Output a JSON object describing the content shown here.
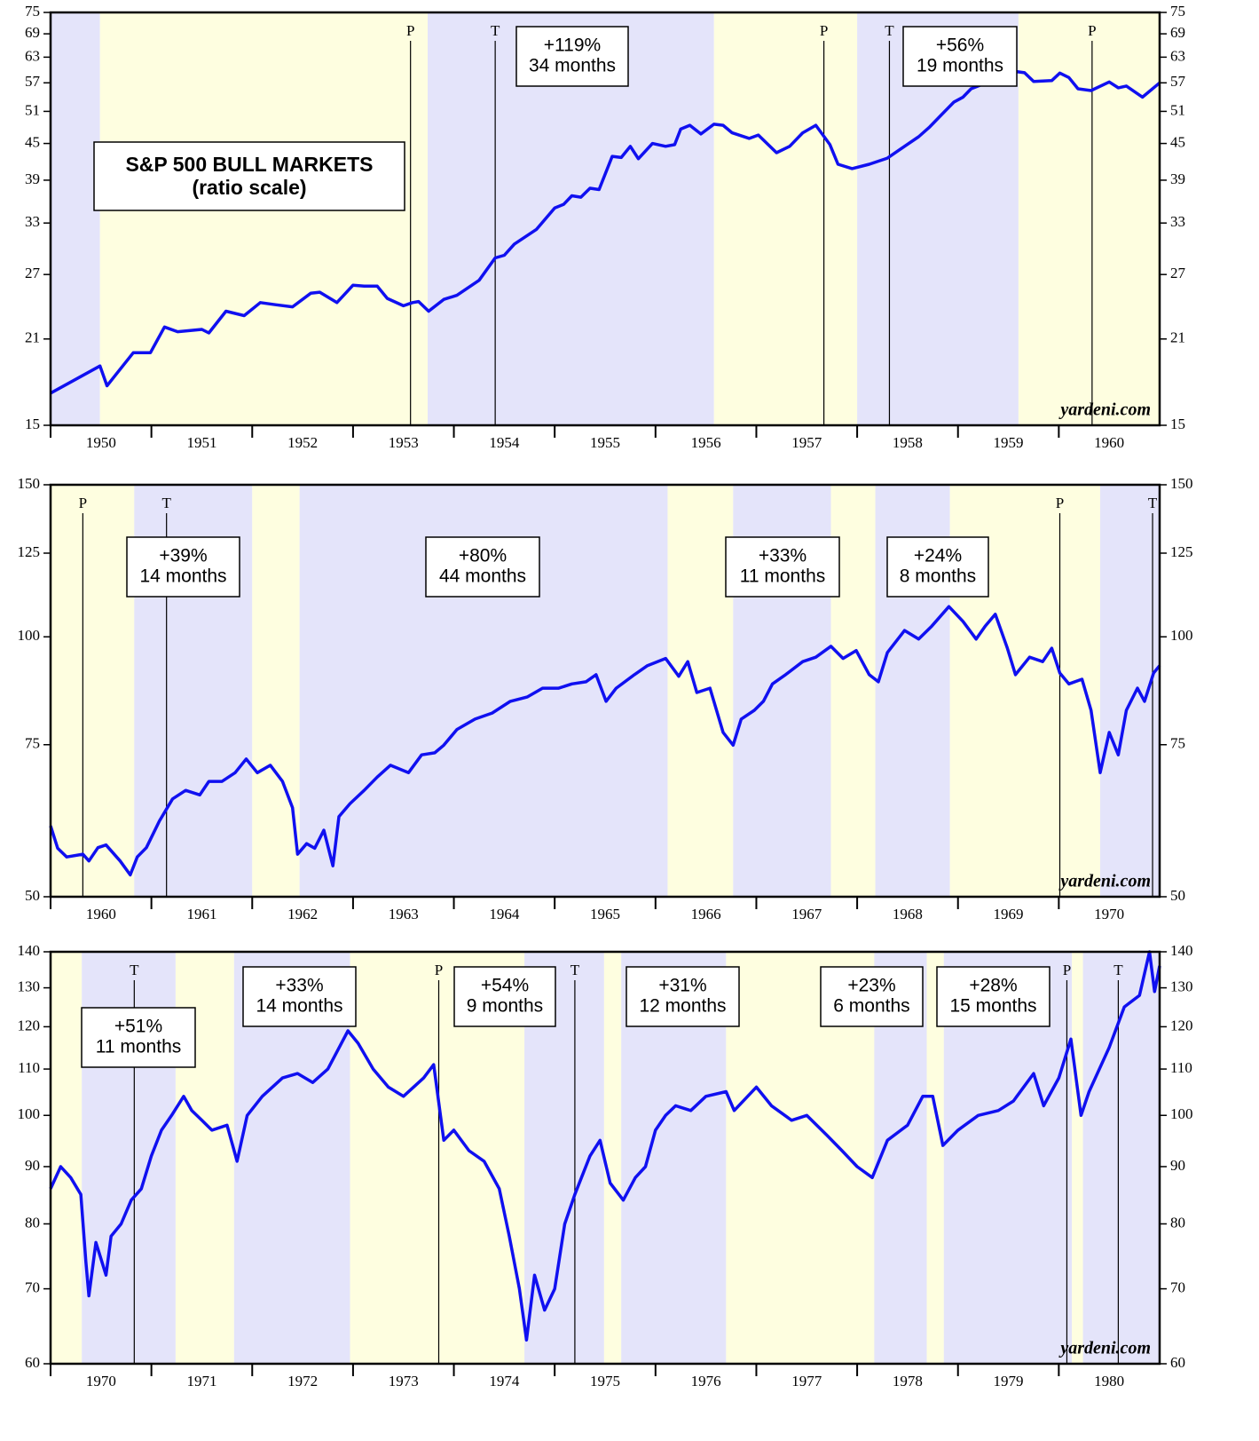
{
  "chart_data": [
    {
      "type": "line",
      "title": "S&P 500 BULL MARKETS",
      "subtitle": "(ratio scale)",
      "log_scale": true,
      "color": "#1010f0",
      "source": "yardeni.com",
      "xlim": [
        1950,
        1961
      ],
      "ylim": [
        15,
        75
      ],
      "xticks": [
        1950,
        1951,
        1952,
        1953,
        1954,
        1955,
        1956,
        1957,
        1958,
        1959,
        1960
      ],
      "yticks": [
        15,
        21,
        27,
        33,
        39,
        45,
        51,
        57,
        63,
        69,
        75
      ],
      "bands": [
        {
          "start": 1950,
          "end": 1950.49,
          "color": "#e4e4fa"
        },
        {
          "start": 1950.49,
          "end": 1953.74,
          "color": "#fefee0"
        },
        {
          "start": 1953.74,
          "end": 1956.58,
          "color": "#e4e4fa"
        },
        {
          "start": 1956.58,
          "end": 1958.0,
          "color": "#fefee0"
        },
        {
          "start": 1958.0,
          "end": 1959.6,
          "color": "#e4e4fa"
        },
        {
          "start": 1959.6,
          "end": 1961,
          "color": "#fefee0"
        }
      ],
      "events": [
        {
          "x": 1953.57,
          "label": "P"
        },
        {
          "x": 1954.41,
          "label": "T"
        },
        {
          "x": 1957.67,
          "label": "P"
        },
        {
          "x": 1958.32,
          "label": "T"
        },
        {
          "x": 1960.33,
          "label": "P"
        }
      ],
      "annotations": [
        {
          "lines": [
            "+119%",
            "34 months"
          ]
        },
        {
          "lines": [
            "+56%",
            "19 months"
          ]
        }
      ],
      "x": [
        1950,
        1950.49,
        1950.56,
        1950.82,
        1950.99,
        1951.13,
        1951.26,
        1951.5,
        1951.57,
        1951.74,
        1951.92,
        1952.08,
        1952.23,
        1952.4,
        1952.58,
        1952.67,
        1952.84,
        1953.0,
        1953.11,
        1953.24,
        1953.34,
        1953.5,
        1953.59,
        1953.65,
        1953.75,
        1953.9,
        1954.03,
        1954.25,
        1954.41,
        1954.5,
        1954.6,
        1954.82,
        1955.0,
        1955.09,
        1955.17,
        1955.26,
        1955.35,
        1955.44,
        1955.57,
        1955.66,
        1955.75,
        1955.83,
        1955.97,
        1956.1,
        1956.19,
        1956.25,
        1956.34,
        1956.45,
        1956.58,
        1956.67,
        1956.76,
        1956.93,
        1957.02,
        1957.2,
        1957.33,
        1957.46,
        1957.59,
        1957.73,
        1957.81,
        1957.95,
        1958.12,
        1958.3,
        1958.47,
        1958.61,
        1958.72,
        1958.83,
        1958.96,
        1959.05,
        1959.13,
        1959.27,
        1959.4,
        1959.53,
        1959.66,
        1959.75,
        1959.93,
        1960.01,
        1960.1,
        1960.19,
        1960.32,
        1960.5,
        1960.59,
        1960.67,
        1960.83,
        1961.0
      ],
      "values": [
        17.0,
        18.9,
        17.5,
        19.9,
        19.9,
        22.0,
        21.6,
        21.8,
        21.5,
        23.4,
        23.0,
        24.2,
        24.0,
        23.8,
        25.1,
        25.2,
        24.2,
        25.9,
        25.8,
        25.8,
        24.6,
        23.9,
        24.2,
        24.3,
        23.4,
        24.5,
        24.9,
        26.4,
        28.8,
        29.1,
        30.4,
        32.2,
        35.0,
        35.5,
        36.7,
        36.5,
        37.8,
        37.6,
        42.8,
        42.6,
        44.5,
        42.4,
        45.0,
        44.5,
        44.8,
        47.6,
        48.3,
        46.7,
        48.5,
        48.3,
        46.9,
        45.9,
        46.5,
        43.4,
        44.5,
        46.9,
        48.3,
        44.8,
        41.5,
        40.8,
        41.5,
        42.5,
        44.5,
        46.2,
        48.0,
        50.2,
        52.9,
        53.9,
        55.7,
        56.9,
        59.3,
        59.7,
        59.3,
        57.3,
        57.5,
        59.2,
        58.2,
        55.7,
        55.3,
        57.2,
        55.9,
        56.3,
        53.9,
        57.0
      ]
    },
    {
      "type": "line",
      "log_scale": true,
      "color": "#1010f0",
      "source": "yardeni.com",
      "xlim": [
        1960,
        1971
      ],
      "ylim": [
        50,
        150
      ],
      "xticks": [
        1960,
        1961,
        1962,
        1963,
        1964,
        1965,
        1966,
        1967,
        1968,
        1969,
        1970
      ],
      "yticks": [
        50,
        75,
        100,
        125,
        150
      ],
      "bands": [
        {
          "start": 1960,
          "end": 1960.83,
          "color": "#fefee0"
        },
        {
          "start": 1960.83,
          "end": 1962.0,
          "color": "#e4e4fa"
        },
        {
          "start": 1962.0,
          "end": 1962.47,
          "color": "#fefee0"
        },
        {
          "start": 1962.47,
          "end": 1966.12,
          "color": "#e4e4fa"
        },
        {
          "start": 1966.12,
          "end": 1966.77,
          "color": "#fefee0"
        },
        {
          "start": 1966.77,
          "end": 1967.74,
          "color": "#e4e4fa"
        },
        {
          "start": 1967.74,
          "end": 1968.18,
          "color": "#fefee0"
        },
        {
          "start": 1968.18,
          "end": 1968.92,
          "color": "#e4e4fa"
        },
        {
          "start": 1968.92,
          "end": 1970.41,
          "color": "#fefee0"
        },
        {
          "start": 1970.41,
          "end": 1971,
          "color": "#e4e4fa"
        }
      ],
      "events": [
        {
          "x": 1960.32,
          "label": "P"
        },
        {
          "x": 1961.15,
          "label": "T"
        },
        {
          "x": 1970.01,
          "label": "P"
        },
        {
          "x": 1970.93,
          "label": "T"
        }
      ],
      "annotations": [
        {
          "lines": [
            "+39%",
            "14 months"
          ]
        },
        {
          "lines": [
            "+80%",
            "44 months"
          ]
        },
        {
          "lines": [
            "+33%",
            "11 months"
          ]
        },
        {
          "lines": [
            "+24%",
            "8 months"
          ]
        }
      ],
      "x": [
        1960,
        1960.07,
        1960.16,
        1960.32,
        1960.38,
        1960.47,
        1960.55,
        1960.69,
        1960.79,
        1960.86,
        1960.95,
        1961.08,
        1961.21,
        1961.34,
        1961.48,
        1961.57,
        1961.7,
        1961.83,
        1961.94,
        1962.05,
        1962.18,
        1962.3,
        1962.4,
        1962.45,
        1962.54,
        1962.62,
        1962.71,
        1962.8,
        1962.86,
        1962.97,
        1963.11,
        1963.24,
        1963.37,
        1963.55,
        1963.68,
        1963.81,
        1963.9,
        1964.03,
        1964.21,
        1964.38,
        1964.56,
        1964.73,
        1964.88,
        1965.04,
        1965.17,
        1965.31,
        1965.41,
        1965.51,
        1965.61,
        1965.79,
        1965.92,
        1966.1,
        1966.23,
        1966.32,
        1966.41,
        1966.54,
        1966.67,
        1966.77,
        1966.85,
        1966.98,
        1967.07,
        1967.16,
        1967.29,
        1967.46,
        1967.59,
        1967.74,
        1967.86,
        1967.99,
        1968.12,
        1968.21,
        1968.3,
        1968.47,
        1968.61,
        1968.74,
        1968.91,
        1969.05,
        1969.18,
        1969.27,
        1969.37,
        1969.49,
        1969.57,
        1969.71,
        1969.84,
        1969.93,
        1970.01,
        1970.1,
        1970.23,
        1970.32,
        1970.41,
        1970.5,
        1970.59,
        1970.67,
        1970.78,
        1970.85,
        1970.94,
        1971.0
      ],
      "values": [
        60.4,
        56.9,
        55.6,
        56.0,
        55.0,
        57.0,
        57.4,
        55.0,
        53.0,
        55.6,
        57.0,
        61.2,
        64.9,
        66.4,
        65.6,
        68.0,
        68.0,
        69.6,
        72.2,
        69.6,
        71.0,
        68.0,
        63.4,
        56.0,
        57.6,
        56.9,
        59.7,
        54.3,
        61.9,
        64.1,
        66.4,
        68.8,
        71.0,
        69.6,
        73.0,
        73.4,
        74.9,
        78.1,
        80.3,
        81.6,
        84.2,
        85.2,
        87.2,
        87.2,
        88.2,
        88.7,
        90.4,
        84.2,
        87.2,
        90.4,
        92.6,
        94.4,
        90.0,
        93.6,
        86.2,
        87.2,
        77.5,
        74.9,
        80.3,
        82.2,
        84.2,
        88.2,
        90.4,
        93.6,
        94.7,
        97.5,
        94.4,
        96.4,
        90.4,
        88.7,
        95.9,
        101.7,
        99.4,
        102.9,
        108.4,
        104.2,
        99.4,
        102.9,
        106.2,
        97.0,
        90.4,
        94.7,
        93.6,
        97.0,
        90.8,
        88.2,
        89.3,
        82.2,
        69.6,
        77.5,
        73.0,
        82.2,
        87.2,
        84.2,
        90.8,
        92.6
      ]
    },
    {
      "type": "line",
      "log_scale": true,
      "color": "#1010f0",
      "source": "yardeni.com",
      "xlim": [
        1970,
        1981
      ],
      "ylim": [
        60,
        140
      ],
      "xticks": [
        1970,
        1971,
        1972,
        1973,
        1974,
        1975,
        1976,
        1977,
        1978,
        1979,
        1980
      ],
      "yticks": [
        60,
        70,
        80,
        90,
        100,
        110,
        120,
        130,
        140
      ],
      "bands": [
        {
          "start": 1970,
          "end": 1970.31,
          "color": "#fefee0"
        },
        {
          "start": 1970.31,
          "end": 1971.24,
          "color": "#e4e4fa"
        },
        {
          "start": 1971.24,
          "end": 1971.82,
          "color": "#fefee0"
        },
        {
          "start": 1971.82,
          "end": 1972.97,
          "color": "#e4e4fa"
        },
        {
          "start": 1972.97,
          "end": 1974.7,
          "color": "#fefee0"
        },
        {
          "start": 1974.7,
          "end": 1975.49,
          "color": "#e4e4fa"
        },
        {
          "start": 1975.49,
          "end": 1975.66,
          "color": "#fefee0"
        },
        {
          "start": 1975.66,
          "end": 1976.7,
          "color": "#e4e4fa"
        },
        {
          "start": 1976.7,
          "end": 1978.17,
          "color": "#fefee0"
        },
        {
          "start": 1978.17,
          "end": 1978.69,
          "color": "#e4e4fa"
        },
        {
          "start": 1978.69,
          "end": 1978.86,
          "color": "#fefee0"
        },
        {
          "start": 1978.86,
          "end": 1980.13,
          "color": "#e4e4fa"
        },
        {
          "start": 1980.13,
          "end": 1980.24,
          "color": "#fefee0"
        },
        {
          "start": 1980.24,
          "end": 1981,
          "color": "#e4e4fa"
        }
      ],
      "events": [
        {
          "x": 1970.83,
          "label": "T"
        },
        {
          "x": 1973.85,
          "label": "P"
        },
        {
          "x": 1975.2,
          "label": "T"
        },
        {
          "x": 1980.08,
          "label": "P"
        },
        {
          "x": 1980.59,
          "label": "T"
        }
      ],
      "annotations": [
        {
          "lines": [
            "+51%",
            "11 months"
          ]
        },
        {
          "lines": [
            "+33%",
            "14 months"
          ]
        },
        {
          "lines": [
            "+54%",
            "9 months"
          ]
        },
        {
          "lines": [
            "+31%",
            "12 months"
          ]
        },
        {
          "lines": [
            "+23%",
            "6 months"
          ]
        },
        {
          "lines": [
            "+28%",
            "15 months"
          ]
        }
      ],
      "x": [
        1970,
        1970.1,
        1970.2,
        1970.3,
        1970.35,
        1970.38,
        1970.45,
        1970.55,
        1970.6,
        1970.7,
        1970.8,
        1970.9,
        1971.0,
        1971.1,
        1971.2,
        1971.32,
        1971.4,
        1971.5,
        1971.6,
        1971.75,
        1971.85,
        1971.95,
        1972.1,
        1972.3,
        1972.45,
        1972.6,
        1972.75,
        1972.95,
        1973.05,
        1973.2,
        1973.35,
        1973.5,
        1973.7,
        1973.8,
        1973.9,
        1974.0,
        1974.15,
        1974.3,
        1974.45,
        1974.55,
        1974.65,
        1974.72,
        1974.8,
        1974.9,
        1975.0,
        1975.1,
        1975.2,
        1975.35,
        1975.45,
        1975.55,
        1975.68,
        1975.8,
        1975.9,
        1976.0,
        1976.1,
        1976.2,
        1976.35,
        1976.5,
        1976.7,
        1976.78,
        1977.0,
        1977.15,
        1977.35,
        1977.5,
        1977.7,
        1977.85,
        1978.0,
        1978.15,
        1978.3,
        1978.5,
        1978.65,
        1978.75,
        1978.85,
        1979.0,
        1979.2,
        1979.4,
        1979.55,
        1979.75,
        1979.85,
        1980.0,
        1980.12,
        1980.22,
        1980.3,
        1980.5,
        1980.65,
        1980.8,
        1980.9,
        1980.95,
        1981.0
      ],
      "values": [
        86,
        90,
        88,
        85,
        74,
        69,
        77,
        72,
        78,
        80,
        84,
        86,
        92,
        97,
        100,
        104,
        101,
        99,
        97,
        98,
        91,
        100,
        104,
        108,
        109,
        107,
        110,
        119,
        116,
        110,
        106,
        104,
        108,
        111,
        95,
        97,
        93,
        91,
        86,
        78,
        70,
        63,
        72,
        67,
        70,
        80,
        85,
        92,
        95,
        87,
        84,
        88,
        90,
        97,
        100,
        102,
        101,
        104,
        105,
        101,
        106,
        102,
        99,
        100,
        96,
        93,
        90,
        88,
        95,
        98,
        104,
        104,
        94,
        97,
        100,
        101,
        103,
        109,
        102,
        108,
        117,
        100,
        105,
        115,
        125,
        128,
        140,
        129,
        136
      ]
    }
  ]
}
